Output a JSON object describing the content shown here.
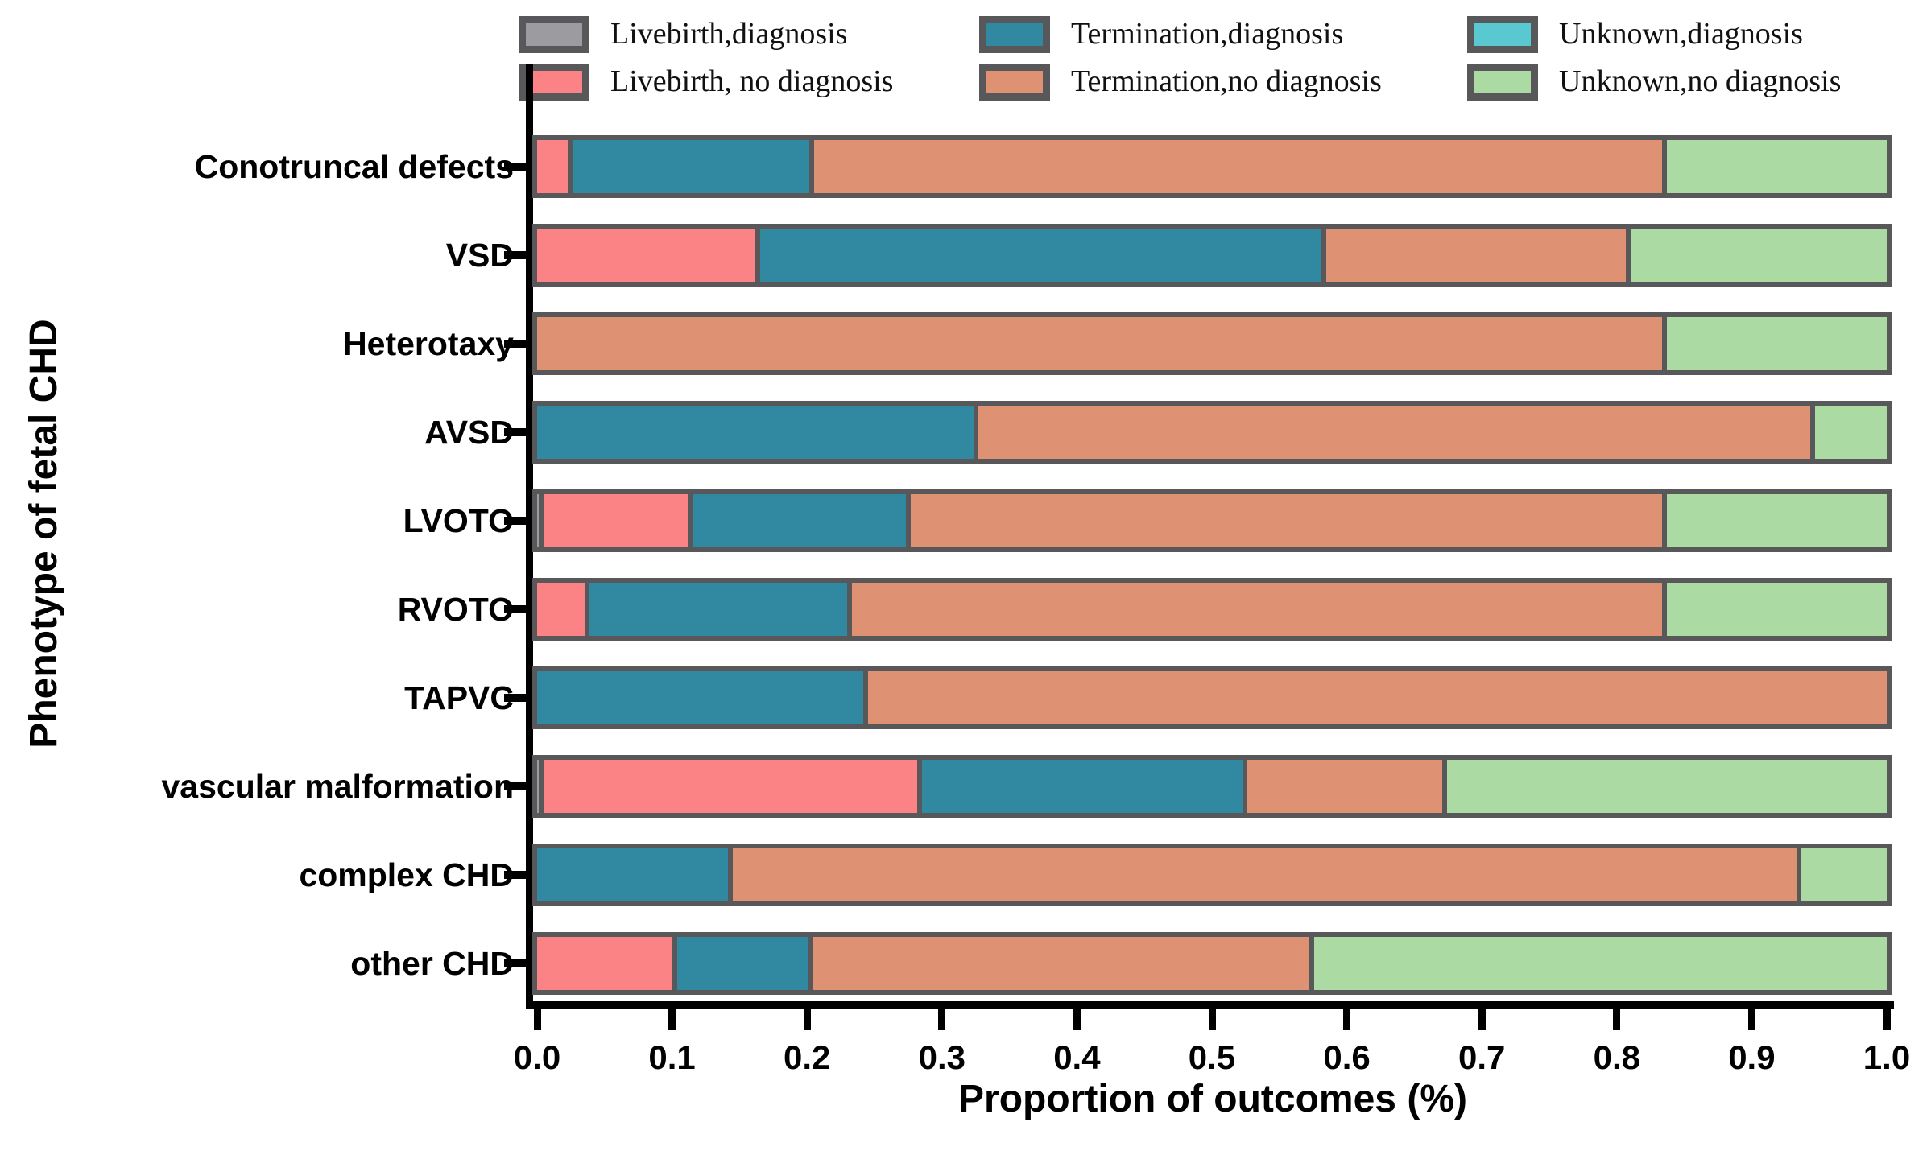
{
  "chart_data": {
    "type": "bar",
    "variant": "horizontal-stacked",
    "title": "",
    "xlabel": "Proportion of outcomes (%)",
    "ylabel": "Phenotype of fetal CHD",
    "xlim": [
      0.0,
      1.0
    ],
    "x_ticks": [
      "0.0",
      "0.1",
      "0.2",
      "0.3",
      "0.4",
      "0.5",
      "0.6",
      "0.7",
      "0.8",
      "0.9",
      "1.0"
    ],
    "grid": false,
    "legend_position": "top",
    "legend_item_order": [
      0,
      2,
      4,
      1,
      3,
      5
    ],
    "categories": [
      "Conotruncal defects",
      "VSD",
      "Heterotaxy",
      "AVSD",
      "LVOTO",
      "RVOTO",
      "TAPVC",
      "vascular malformation",
      "complex CHD",
      "other CHD"
    ],
    "series": [
      {
        "name": "Livebirth,diagnosis",
        "color": "#9C9CA0",
        "values": [
          0,
          0,
          0,
          0,
          0.005,
          0,
          0,
          0.005,
          0,
          0
        ]
      },
      {
        "name": "Livebirth, no diagnosis",
        "color": "#FB8385",
        "values": [
          0.026,
          0.165,
          0,
          0,
          0.11,
          0.039,
          0,
          0.28,
          0,
          0.104
        ]
      },
      {
        "name": "Termination,diagnosis",
        "color": "#3089A1",
        "values": [
          0.179,
          0.42,
          0,
          0.327,
          0.162,
          0.194,
          0.245,
          0.241,
          0.145,
          0.1
        ]
      },
      {
        "name": "Termination,no diagnosis",
        "color": "#DF9273",
        "values": [
          0.632,
          0.225,
          0.837,
          0.62,
          0.56,
          0.604,
          0.755,
          0.148,
          0.792,
          0.372
        ]
      },
      {
        "name": "Unknown,diagnosis",
        "color": "#5AC8D0",
        "values": [
          0,
          0,
          0,
          0,
          0,
          0,
          0,
          0,
          0,
          0
        ]
      },
      {
        "name": "Unknown,no diagnosis",
        "color": "#ABDBA3",
        "values": [
          0.163,
          0.19,
          0.163,
          0.053,
          0.163,
          0.163,
          0,
          0.326,
          0.063,
          0.424
        ]
      }
    ]
  },
  "layout_colors": {
    "segment_outline": "#58585B",
    "axis": "#000000",
    "background": "#ffffff"
  }
}
